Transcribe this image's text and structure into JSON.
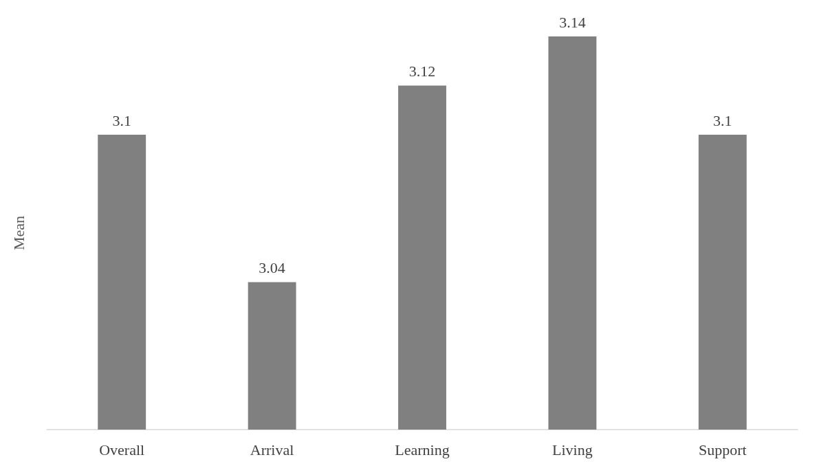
{
  "chart_data": {
    "type": "bar",
    "ylabel": "Mean",
    "categories": [
      "Overall",
      "Arrival",
      "Learning",
      "Living",
      "Support"
    ],
    "values": [
      3.1,
      3.04,
      3.12,
      3.14,
      3.1
    ],
    "color": "#808080",
    "ylim": [
      2.98,
      3.14
    ],
    "tick_labels": "x",
    "data_labels": true,
    "grid": false
  }
}
